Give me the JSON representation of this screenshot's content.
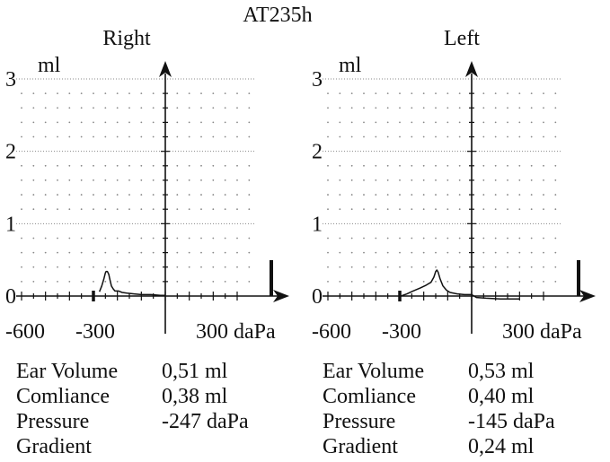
{
  "title": "AT235h",
  "colors": {
    "ink": "#111111",
    "grid": "#888888"
  },
  "chart_data": [
    {
      "type": "line",
      "panel": "right",
      "title": "Right",
      "ylabel": "ml",
      "xlabel_unit": "daPa",
      "xlim": [
        -600,
        300
      ],
      "ylim": [
        0,
        3
      ],
      "x_ticks": [
        -600,
        -300,
        300
      ],
      "x_tick_labels": [
        "-600",
        "-300",
        "300 daPa"
      ],
      "y_ticks": [
        0,
        1,
        2,
        3
      ],
      "y_tick_labels": [
        "0",
        "1",
        "2",
        "3"
      ],
      "grid": "dotted",
      "pressure_marker": -300,
      "series": [
        {
          "x": [
            -275,
            -265,
            -256,
            -250,
            -247,
            -242,
            -236,
            -232,
            -225,
            -218,
            -210,
            -195,
            -180,
            -160,
            -130,
            -100,
            -60,
            -20,
            0
          ],
          "y": [
            0.06,
            0.14,
            0.24,
            0.32,
            0.34,
            0.34,
            0.3,
            0.24,
            0.14,
            0.1,
            0.07,
            0.07,
            0.05,
            0.04,
            0.03,
            0.02,
            0.02,
            0.01,
            0.01
          ]
        }
      ]
    },
    {
      "type": "line",
      "panel": "left",
      "title": "Left",
      "ylabel": "ml",
      "xlabel_unit": "daPa",
      "xlim": [
        -600,
        300
      ],
      "ylim": [
        0,
        3
      ],
      "x_ticks": [
        -600,
        -300,
        300
      ],
      "x_tick_labels": [
        "-600",
        "-300",
        "300 daPa"
      ],
      "y_ticks": [
        0,
        1,
        2,
        3
      ],
      "y_tick_labels": [
        "0",
        "1",
        "2",
        "3"
      ],
      "grid": "dotted",
      "pressure_marker": -300,
      "series": [
        {
          "x": [
            -295,
            -270,
            -245,
            -215,
            -190,
            -170,
            -158,
            -150,
            -145,
            -140,
            -132,
            -120,
            -105,
            -90,
            -60,
            -30,
            0,
            20,
            60,
            120,
            160,
            200
          ],
          "y": [
            0.0,
            0.03,
            0.07,
            0.11,
            0.15,
            0.19,
            0.26,
            0.34,
            0.36,
            0.33,
            0.24,
            0.14,
            0.08,
            0.05,
            0.03,
            0.02,
            0.02,
            -0.02,
            -0.03,
            -0.04,
            -0.04,
            -0.04
          ]
        }
      ]
    }
  ],
  "results": {
    "right": [
      {
        "label": "Ear Volume",
        "value": "0,51 ml"
      },
      {
        "label": "Comliance",
        "value": "0,38 ml"
      },
      {
        "label": "Pressure",
        "value": "-247 daPa"
      },
      {
        "label": "Gradient",
        "value": ""
      }
    ],
    "left": [
      {
        "label": "Ear Volume",
        "value": "0,53 ml"
      },
      {
        "label": "Comliance",
        "value": "0,40 ml"
      },
      {
        "label": "Pressure",
        "value": "-145 daPa"
      },
      {
        "label": "Gradient",
        "value": "0,24 ml"
      }
    ]
  }
}
